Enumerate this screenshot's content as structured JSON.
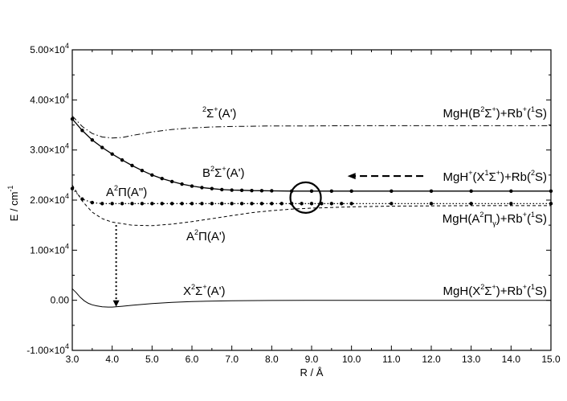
{
  "chart_data": {
    "type": "line",
    "title": "",
    "xlabel": "R / Å",
    "ylabel": "E / cm",
    "ylabel_sup": "-1",
    "xlim": [
      3.0,
      15.0
    ],
    "ylim": [
      -10000,
      50000
    ],
    "x_ticks": [
      3.0,
      4.0,
      5.0,
      6.0,
      7.0,
      8.0,
      9.0,
      10.0,
      11.0,
      12.0,
      13.0,
      14.0,
      15.0
    ],
    "x_tick_labels": [
      "3.0",
      "4.0",
      "5.0",
      "6.0",
      "7.0",
      "8.0",
      "9.0",
      "10.0",
      "11.0",
      "12.0",
      "13.0",
      "14.0",
      "15.0"
    ],
    "y_ticks": [
      {
        "value": -10000,
        "mant": "-1.00×10",
        "exp": "4"
      },
      {
        "value": 0,
        "mant": "0.00",
        "exp": ""
      },
      {
        "value": 10000,
        "mant": "1.00×10",
        "exp": "4"
      },
      {
        "value": 20000,
        "mant": "2.00×10",
        "exp": "4"
      },
      {
        "value": 30000,
        "mant": "3.00×10",
        "exp": "4"
      },
      {
        "value": 40000,
        "mant": "4.00×10",
        "exp": "4"
      },
      {
        "value": 50000,
        "mant": "5.00×10",
        "exp": "4"
      }
    ],
    "grid": false,
    "legend": "none",
    "series": [
      {
        "style": "solid-markers",
        "x": [
          3.0,
          3.25,
          3.5,
          3.75,
          4.0,
          4.25,
          4.5,
          4.75,
          5.0,
          5.25,
          5.5,
          5.75,
          6.0,
          6.25,
          6.5,
          6.75,
          7.0,
          7.25,
          7.5,
          7.75,
          8.0,
          8.5,
          9.0,
          9.5,
          10.0,
          11.0,
          12.0,
          13.0,
          14.0,
          15.0
        ],
        "y": [
          36200,
          33900,
          32000,
          30500,
          29200,
          28000,
          26900,
          25900,
          25000,
          24300,
          23700,
          23200,
          22800,
          22500,
          22300,
          22100,
          22000,
          21950,
          21900,
          21870,
          21850,
          21800,
          21800,
          21800,
          21800,
          21800,
          21800,
          21800,
          21800,
          21800
        ]
      },
      {
        "style": "dashdot",
        "x": [
          3.0,
          3.25,
          3.5,
          3.75,
          4.0,
          4.25,
          4.5,
          5.0,
          5.5,
          6.0,
          6.5,
          7.0,
          7.5,
          8.0,
          8.5,
          9.0,
          10.0,
          11.0,
          12.0,
          13.0,
          14.0,
          15.0
        ],
        "y": [
          36800,
          34700,
          33300,
          32600,
          32400,
          32500,
          32900,
          33600,
          34100,
          34400,
          34600,
          34700,
          34750,
          34800,
          34800,
          34800,
          34850,
          34850,
          34850,
          34850,
          34850,
          34850
        ]
      },
      {
        "style": "dotted-markers",
        "x": [
          3.0,
          3.25,
          3.5,
          3.75,
          4.0,
          4.25,
          4.5,
          4.75,
          5.0,
          5.25,
          5.5,
          5.75,
          6.0,
          6.25,
          6.5,
          6.75,
          7.0,
          7.25,
          7.5,
          7.75,
          8.0,
          8.25,
          8.5,
          8.75,
          9.0,
          9.25,
          9.5,
          9.75,
          10.0,
          11.0,
          12.0,
          13.0,
          14.0,
          15.0
        ],
        "y": [
          22300,
          20200,
          19500,
          19300,
          19300,
          19300,
          19300,
          19300,
          19300,
          19300,
          19300,
          19300,
          19300,
          19300,
          19300,
          19300,
          19300,
          19300,
          19300,
          19300,
          19300,
          19300,
          19300,
          19300,
          19300,
          19300,
          19300,
          19300,
          19300,
          19300,
          19300,
          19300,
          19300,
          19300
        ]
      },
      {
        "style": "dashed",
        "x": [
          3.0,
          3.25,
          3.5,
          3.75,
          4.0,
          4.5,
          5.0,
          5.5,
          6.0,
          6.5,
          7.0,
          7.5,
          8.0,
          8.5,
          9.0,
          10.0,
          11.0,
          12.0,
          13.0,
          14.0,
          15.0
        ],
        "y": [
          23000,
          19800,
          17600,
          16300,
          15600,
          15000,
          14900,
          15200,
          15700,
          16300,
          16900,
          17500,
          17900,
          18200,
          18400,
          18650,
          18800,
          18850,
          18900,
          18900,
          18900
        ]
      },
      {
        "style": "solid",
        "x": [
          3.0,
          3.1,
          3.2,
          3.3,
          3.4,
          3.5,
          3.6,
          3.75,
          3.9,
          4.0,
          4.25,
          4.5,
          5.0,
          5.5,
          6.0,
          7.0,
          8.0,
          9.0,
          10.0,
          11.0,
          12.0,
          13.0,
          14.0,
          15.0
        ],
        "y": [
          2300,
          1500,
          600,
          -100,
          -600,
          -900,
          -1100,
          -1300,
          -1350,
          -1350,
          -1200,
          -1000,
          -650,
          -400,
          -250,
          -100,
          -40,
          0,
          0,
          0,
          0,
          0,
          0,
          0
        ]
      }
    ],
    "annotations": {
      "b_state": {
        "base": "B",
        "s1": "2",
        "mid": "Σ",
        "s2": "+",
        "end": "(A')"
      },
      "two_sigma": {
        "s1": "2",
        "mid": "Σ",
        "s2": "+",
        "end": "(A')"
      },
      "a_pi_2": {
        "base": "A",
        "s1": "2",
        "end": "Π(A\")"
      },
      "a_pi_1": {
        "base": "A",
        "s1": "2",
        "end": "Π(A')"
      },
      "x_state": {
        "base": "X",
        "s1": "2",
        "mid": "Σ",
        "s2": "+",
        "end": "(A')"
      },
      "asym_b": {
        "base": "MgH(B",
        "s1": "2",
        "mid": "Σ",
        "s2": "+",
        "mid2": ")+Rb",
        "s3": "+",
        "mid3": "(",
        "s4": "1",
        "end": "S)"
      },
      "asym_ion": {
        "base": "MgH",
        "s1": "+",
        "mid": "(X",
        "s2": "1",
        "mid2": "Σ",
        "s3": "+",
        "mid3": ")+Rb(",
        "s4": "2",
        "end": "S)"
      },
      "asym_a": {
        "base": "MgH(A",
        "s1": "2",
        "mid": "Π",
        "sub": "γ",
        "mid2": ")+Rb",
        "s3": "+",
        "mid3": "(",
        "s4": "1",
        "end": "S)"
      },
      "asym_x": {
        "base": "MgH(X",
        "s1": "2",
        "mid": "Σ",
        "s2": "+",
        "mid2": ")+Rb",
        "s3": "+",
        "mid3": "(",
        "s4": "1",
        "end": "S)"
      }
    },
    "marks": {
      "circle_center": {
        "x": 8.85,
        "y": 20500
      },
      "transition_arrow": {
        "x": 4.1,
        "y_from": 15000,
        "y_to": -1300
      },
      "incoming_arrow": {
        "x_from": 11.8,
        "x_to": 9.9,
        "y": 24800
      }
    }
  }
}
